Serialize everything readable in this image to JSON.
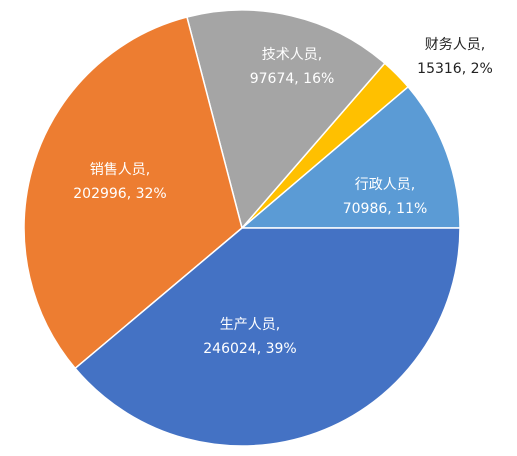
{
  "chart_data": {
    "type": "pie",
    "categories": [
      "行政人员,",
      "财务人员,",
      "技术人员,",
      "销售人员,",
      "生产人员,"
    ],
    "values": [
      70986,
      15316,
      97674,
      202996,
      246024
    ],
    "value_labels": [
      "70986, 11%",
      "15316, 2%",
      "97674, 16%",
      "202996, 32%",
      "246024, 39%"
    ],
    "colors": [
      "#5b9bd5",
      "#ffc000",
      "#a5a5a5",
      "#ed7d31",
      "#4472c4"
    ]
  }
}
